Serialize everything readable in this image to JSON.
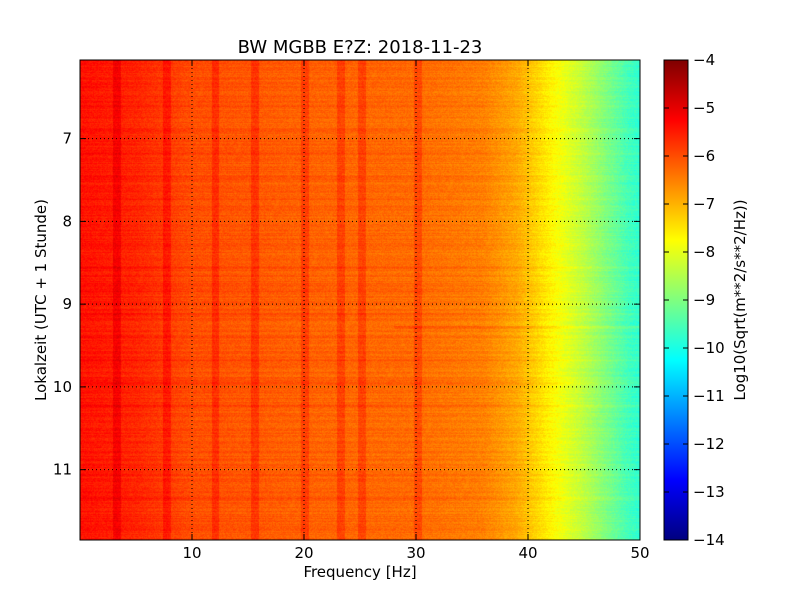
{
  "chart_data": {
    "type": "heatmap",
    "title": "BW MGBB E?Z: 2018-11-23",
    "xlabel": "Frequency [Hz]",
    "ylabel": "Lokalzeit (UTC + 1 Stunde)",
    "xlim": [
      0,
      50
    ],
    "ylim": [
      11.85,
      6.05
    ],
    "y_inverted": true,
    "x_ticks": [
      10,
      20,
      30,
      40,
      50
    ],
    "y_ticks": [
      7,
      8,
      9,
      10,
      11
    ],
    "grid": true,
    "colormap": "jet",
    "colorbar": {
      "label": "Log10(Sqrt(m**2/s**2/Hz))",
      "range": [
        -14,
        -4
      ],
      "ticks": [
        -4,
        -5,
        -6,
        -7,
        -8,
        -9,
        -10,
        -11,
        -12,
        -13,
        -14
      ]
    },
    "level_profile": {
      "frequency_hz": [
        0,
        5,
        10,
        20,
        30,
        36,
        39,
        41,
        43,
        45,
        47,
        49,
        50
      ],
      "log10_psd": [
        -5.4,
        -5.6,
        -6.0,
        -6.2,
        -6.3,
        -6.5,
        -6.9,
        -7.4,
        -7.9,
        -8.4,
        -9.0,
        -9.6,
        -9.8
      ]
    },
    "vertical_lines_hz": [
      3.3,
      7.8,
      12.1,
      15.6,
      20.1,
      23.3,
      25.2,
      30.2
    ],
    "horizontal_line_hour": 9.28
  },
  "colors": {
    "jet": [
      "#00007f",
      "#0000ff",
      "#007fff",
      "#00ffff",
      "#7fff7f",
      "#ffff00",
      "#ff7f00",
      "#ff0000",
      "#7f0000"
    ]
  }
}
